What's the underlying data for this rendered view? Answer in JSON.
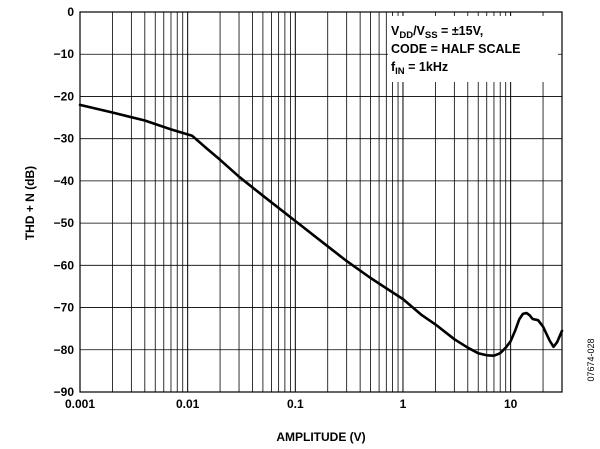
{
  "chart_data": {
    "type": "line",
    "xscale": "log",
    "xlim": [
      0.001,
      30
    ],
    "ylim": [
      -90,
      0
    ],
    "xlabel": "AMPLITUDE (V)",
    "ylabel": "THD + N (dB)",
    "x_tick_labels": [
      "0.001",
      "0.01",
      "0.1",
      "1",
      "10"
    ],
    "y_tick_labels": [
      "0",
      "−10",
      "−20",
      "−30",
      "−40",
      "−50",
      "−60",
      "−70",
      "−80",
      "−90"
    ],
    "grid": true,
    "annotation": {
      "line1_base": "V",
      "line1_sub1": "DD",
      "line1_mid": "/V",
      "line1_sub2": "SS",
      "line1_tail": " = ±15V,",
      "line2": "CODE = HALF SCALE",
      "line3_base": "f",
      "line3_sub": "IN",
      "line3_tail": " = 1kHz"
    },
    "figure_id": "07674-028",
    "series": [
      {
        "x": [
          0.001,
          0.002,
          0.004,
          0.007,
          0.011,
          0.015,
          0.02,
          0.03,
          0.05,
          0.1,
          0.2,
          0.3,
          0.5,
          1,
          1.5,
          2,
          3,
          4,
          5,
          6,
          7,
          8,
          9,
          10,
          11,
          12,
          13,
          14,
          15,
          16,
          18,
          20,
          23,
          25,
          27,
          30
        ],
        "y": [
          -22,
          -23.8,
          -25.7,
          -27.8,
          -29.3,
          -32.3,
          -35,
          -39,
          -43.5,
          -49.5,
          -55.5,
          -59,
          -63,
          -68,
          -71.8,
          -74,
          -77.5,
          -79.5,
          -80.8,
          -81.3,
          -81.4,
          -80.8,
          -79.5,
          -78,
          -75.5,
          -72.8,
          -71.5,
          -71.3,
          -71.8,
          -72.7,
          -73,
          -74.5,
          -77.8,
          -79.3,
          -78.2,
          -75.5
        ]
      }
    ]
  }
}
